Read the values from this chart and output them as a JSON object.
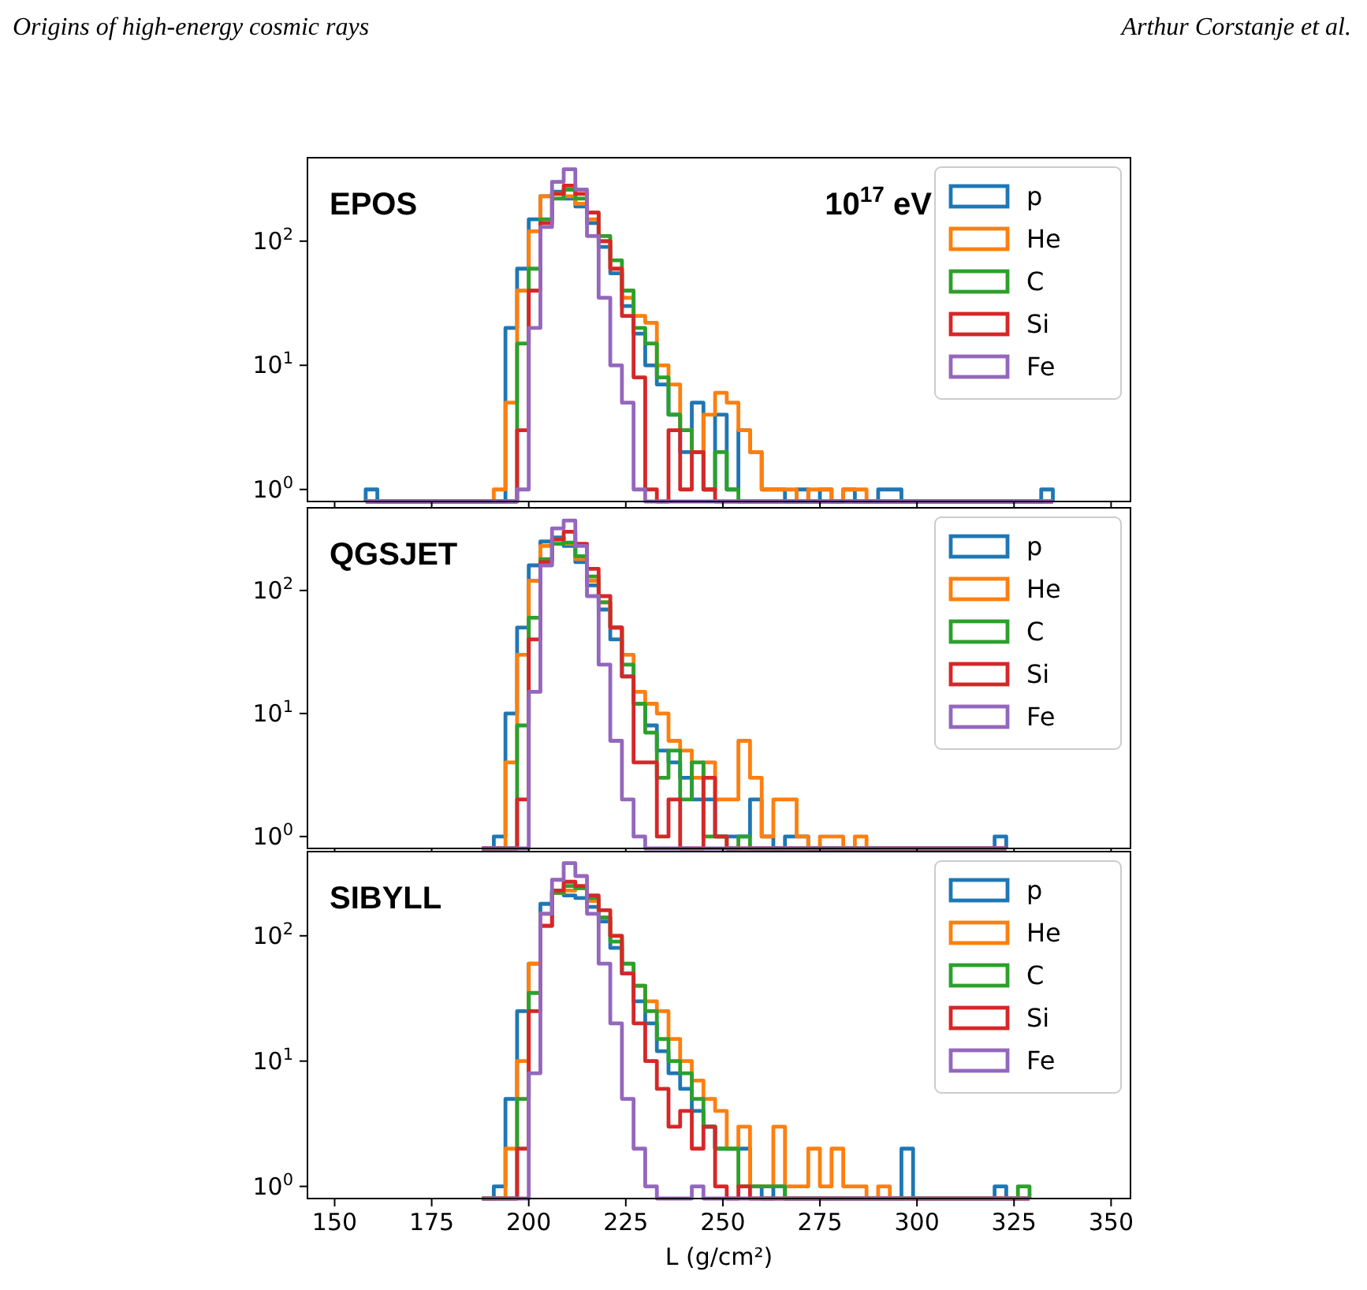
{
  "chart_data": [
    {
      "type": "histogram",
      "title": "EPOS",
      "annotations": [
        "10$^{17}$ eV",
        "Origins of high-energy cosmic rays",
        "Arthur Corstanje et al."
      ],
      "bins": [
        158,
        161,
        164,
        167,
        170,
        173,
        176,
        179,
        182,
        185,
        188,
        191,
        194,
        197,
        200,
        203,
        206,
        209,
        212,
        215,
        218,
        221,
        224,
        227,
        230,
        233,
        236,
        239,
        242,
        245,
        248,
        251,
        254,
        257,
        260,
        263,
        266,
        269,
        272,
        275,
        278,
        281,
        284,
        287,
        290,
        293,
        296,
        299,
        302,
        305,
        308,
        311,
        314,
        317,
        320,
        323,
        326,
        329,
        332,
        335
      ],
      "series": [
        {
          "name": "p",
          "color": "#1f77b4",
          "values": [
            1,
            null,
            null,
            null,
            null,
            null,
            null,
            null,
            null,
            null,
            null,
            null,
            20,
            60,
            150,
            230,
            250,
            220,
            190,
            140,
            90,
            55,
            30,
            18,
            10,
            7,
            4,
            2,
            5,
            1,
            4,
            1,
            3,
            2,
            1,
            1,
            null,
            1,
            null,
            1,
            null,
            1,
            null,
            null,
            1,
            1,
            null,
            null,
            null,
            null,
            null,
            null,
            null,
            null,
            null,
            null,
            null,
            null,
            1
          ]
        },
        {
          "name": "He",
          "color": "#ff7f0e",
          "values": [
            null,
            null,
            null,
            null,
            null,
            null,
            null,
            null,
            null,
            null,
            null,
            1,
            5,
            40,
            120,
            230,
            240,
            230,
            200,
            150,
            100,
            60,
            35,
            25,
            22,
            10,
            7,
            3,
            2,
            4,
            6,
            5,
            3,
            2,
            1,
            1,
            1,
            null,
            1,
            1,
            null,
            1,
            1,
            null,
            null,
            null,
            null,
            null,
            null,
            null,
            null,
            null,
            null,
            null,
            null,
            null,
            null,
            null,
            null
          ]
        },
        {
          "name": "C",
          "color": "#2ca02c",
          "values": [
            null,
            null,
            null,
            null,
            null,
            null,
            null,
            null,
            null,
            null,
            null,
            null,
            null,
            15,
            60,
            150,
            220,
            260,
            220,
            170,
            110,
            70,
            40,
            20,
            15,
            8,
            4,
            3,
            2,
            1,
            2,
            1,
            null,
            null,
            null,
            null,
            null,
            null,
            null,
            null,
            null,
            null,
            null,
            null,
            null,
            null,
            null,
            null,
            null,
            null,
            null,
            null,
            null,
            null,
            null,
            null,
            null,
            null,
            null
          ]
        },
        {
          "name": "Si",
          "color": "#d62728",
          "values": [
            null,
            null,
            null,
            null,
            null,
            null,
            null,
            null,
            null,
            null,
            null,
            null,
            null,
            3,
            40,
            140,
            240,
            280,
            240,
            170,
            100,
            60,
            25,
            8,
            1,
            null,
            3,
            1,
            2,
            1,
            null,
            null,
            null,
            null,
            null,
            null,
            null,
            null,
            null,
            null,
            null,
            null,
            null,
            null,
            null,
            null,
            null,
            null,
            null,
            null,
            null,
            null,
            null,
            null,
            null,
            null,
            null,
            null,
            null
          ]
        },
        {
          "name": "Fe",
          "color": "#9467bd",
          "values": [
            null,
            null,
            null,
            null,
            null,
            null,
            null,
            null,
            null,
            null,
            null,
            null,
            null,
            1,
            20,
            130,
            300,
            380,
            260,
            110,
            35,
            10,
            5,
            1,
            null,
            null,
            null,
            null,
            null,
            null,
            null,
            null,
            null,
            null,
            null,
            null,
            null,
            null,
            null,
            null,
            null,
            null,
            null,
            null,
            null,
            null,
            null,
            null,
            null,
            null,
            null,
            null,
            null,
            null,
            null,
            null,
            null,
            null,
            null
          ]
        }
      ],
      "xlim": [
        143,
        355
      ],
      "xticks": [
        150,
        175,
        200,
        225,
        250,
        275,
        300,
        325,
        350
      ],
      "ylim": [
        0.8,
        470
      ],
      "yticks": [
        {
          "value": 1,
          "label": "10$^{0}$"
        },
        {
          "value": 10,
          "label": "10$^{1}$"
        },
        {
          "value": 100,
          "label": "10$^{2}$"
        }
      ],
      "log": "y",
      "legend": "top right",
      "tick_labels": "y",
      "line_style": "solid"
    },
    {
      "type": "histogram",
      "title": "QGSJET",
      "bins": [
        188,
        191,
        194,
        197,
        200,
        203,
        206,
        209,
        212,
        215,
        218,
        221,
        224,
        227,
        230,
        233,
        236,
        239,
        242,
        245,
        248,
        251,
        254,
        257,
        260,
        263,
        266,
        269,
        272,
        275,
        278,
        281,
        284,
        287,
        290,
        293,
        296,
        299,
        302,
        305,
        308,
        311,
        314,
        317,
        320,
        323
      ],
      "series": [
        {
          "name": "p",
          "color": "#1f77b4",
          "values": [
            null,
            1,
            10,
            50,
            160,
            250,
            270,
            230,
            170,
            110,
            70,
            40,
            20,
            12,
            8,
            5,
            4,
            3,
            2,
            2,
            1,
            1,
            1,
            2,
            1,
            null,
            1,
            1,
            null,
            null,
            null,
            null,
            null,
            null,
            null,
            null,
            null,
            null,
            null,
            null,
            null,
            null,
            null,
            null,
            1
          ]
        },
        {
          "name": "He",
          "color": "#ff7f0e",
          "values": [
            null,
            null,
            4,
            30,
            120,
            230,
            260,
            240,
            180,
            120,
            80,
            50,
            30,
            15,
            12,
            10,
            6,
            5,
            3,
            4,
            2,
            2,
            6,
            3,
            1,
            2,
            2,
            1,
            null,
            1,
            1,
            null,
            1,
            null,
            null,
            null,
            null,
            null,
            null,
            null,
            null,
            null,
            null,
            null,
            null
          ]
        },
        {
          "name": "C",
          "color": "#2ca02c",
          "values": [
            null,
            null,
            null,
            8,
            60,
            180,
            240,
            245,
            190,
            130,
            80,
            50,
            25,
            12,
            7,
            3,
            5,
            2,
            4,
            1,
            1,
            null,
            1,
            null,
            null,
            null,
            null,
            null,
            null,
            null,
            null,
            null,
            null,
            null,
            null,
            null,
            null,
            null,
            null,
            null,
            null,
            null,
            null,
            null,
            null
          ]
        },
        {
          "name": "Si",
          "color": "#d62728",
          "values": [
            null,
            null,
            null,
            2,
            40,
            170,
            260,
            300,
            240,
            150,
            90,
            50,
            20,
            4,
            4,
            1,
            2,
            null,
            null,
            3,
            1,
            null,
            null,
            null,
            null,
            null,
            null,
            null,
            null,
            null,
            null,
            null,
            null,
            null,
            null,
            null,
            null,
            null,
            null,
            null,
            null,
            null,
            null,
            null,
            null
          ]
        },
        {
          "name": "Fe",
          "color": "#9467bd",
          "values": [
            null,
            null,
            null,
            null,
            15,
            160,
            320,
            370,
            230,
            90,
            25,
            6,
            2,
            1,
            null,
            null,
            null,
            null,
            null,
            null,
            null,
            null,
            null,
            null,
            null,
            null,
            null,
            null,
            null,
            null,
            null,
            null,
            null,
            null,
            null,
            null,
            null,
            null,
            null,
            null,
            null,
            null,
            null,
            null,
            null
          ]
        }
      ],
      "xlim": [
        143,
        355
      ],
      "xticks": [
        150,
        175,
        200,
        225,
        250,
        275,
        300,
        325,
        350
      ],
      "ylim": [
        0.8,
        470
      ],
      "yticks": [
        {
          "value": 1,
          "label": "10$^{0}$"
        },
        {
          "value": 10,
          "label": "10$^{1}$"
        },
        {
          "value": 100,
          "label": "10$^{2}$"
        }
      ],
      "log": "y",
      "legend": "top right",
      "tick_labels": "y",
      "line_style": "solid"
    },
    {
      "type": "histogram",
      "title": "SIBYLL",
      "xlabel": "L (g/cm²)",
      "bins": [
        188,
        191,
        194,
        197,
        200,
        203,
        206,
        209,
        212,
        215,
        218,
        221,
        224,
        227,
        230,
        233,
        236,
        239,
        242,
        245,
        248,
        251,
        254,
        257,
        260,
        263,
        266,
        269,
        272,
        275,
        278,
        281,
        284,
        287,
        290,
        293,
        296,
        299,
        302,
        305,
        308,
        311,
        314,
        317,
        320,
        323,
        326,
        329
      ],
      "series": [
        {
          "name": "p",
          "color": "#1f77b4",
          "values": [
            null,
            1,
            5,
            25,
            60,
            180,
            230,
            210,
            200,
            170,
            130,
            80,
            50,
            30,
            20,
            12,
            8,
            6,
            4,
            3,
            2,
            2,
            2,
            1,
            null,
            1,
            null,
            null,
            null,
            null,
            null,
            null,
            null,
            null,
            null,
            null,
            2,
            null,
            null,
            null,
            null,
            null,
            null,
            null,
            1,
            null,
            null
          ]
        },
        {
          "name": "He",
          "color": "#ff7f0e",
          "values": [
            null,
            null,
            2,
            10,
            60,
            150,
            220,
            230,
            240,
            190,
            140,
            100,
            60,
            40,
            30,
            25,
            15,
            10,
            7,
            5,
            4,
            2,
            3,
            1,
            1,
            3,
            1,
            1,
            2,
            1,
            2,
            1,
            1,
            null,
            1,
            null,
            null,
            null,
            null,
            null,
            null,
            null,
            null,
            null,
            null,
            null,
            null
          ]
        },
        {
          "name": "C",
          "color": "#2ca02c",
          "values": [
            null,
            null,
            null,
            5,
            35,
            120,
            220,
            250,
            240,
            200,
            140,
            90,
            60,
            40,
            25,
            15,
            10,
            8,
            5,
            3,
            2,
            2,
            1,
            1,
            1,
            1,
            null,
            null,
            null,
            null,
            null,
            null,
            null,
            null,
            null,
            null,
            null,
            null,
            null,
            null,
            null,
            null,
            null,
            null,
            null,
            null,
            1
          ]
        },
        {
          "name": "Si",
          "color": "#d62728",
          "values": [
            null,
            null,
            null,
            2,
            25,
            120,
            230,
            270,
            250,
            210,
            160,
            100,
            50,
            20,
            10,
            6,
            3,
            4,
            2,
            3,
            1,
            null,
            1,
            null,
            null,
            null,
            null,
            null,
            null,
            null,
            null,
            null,
            null,
            null,
            null,
            null,
            null,
            null,
            null,
            null,
            null,
            null,
            null,
            null,
            null,
            null,
            null
          ]
        },
        {
          "name": "Fe",
          "color": "#9467bd",
          "values": [
            null,
            null,
            null,
            null,
            8,
            150,
            280,
            380,
            300,
            150,
            60,
            20,
            5,
            2,
            1,
            null,
            null,
            null,
            1,
            null,
            null,
            null,
            null,
            null,
            null,
            null,
            null,
            null,
            null,
            null,
            null,
            null,
            null,
            null,
            null,
            null,
            null,
            null,
            null,
            null,
            null,
            null,
            null,
            null,
            null,
            null,
            null
          ]
        }
      ],
      "xlim": [
        143,
        355
      ],
      "xticks": [
        150,
        175,
        200,
        225,
        250,
        275,
        300,
        325,
        350
      ],
      "ylim": [
        0.8,
        470
      ],
      "yticks": [
        {
          "value": 1,
          "label": "10$^{0}$"
        },
        {
          "value": 10,
          "label": "10$^{1}$"
        },
        {
          "value": 100,
          "label": "10$^{2}$"
        }
      ],
      "log": "y",
      "legend": "top right",
      "line_style": "solid"
    }
  ]
}
